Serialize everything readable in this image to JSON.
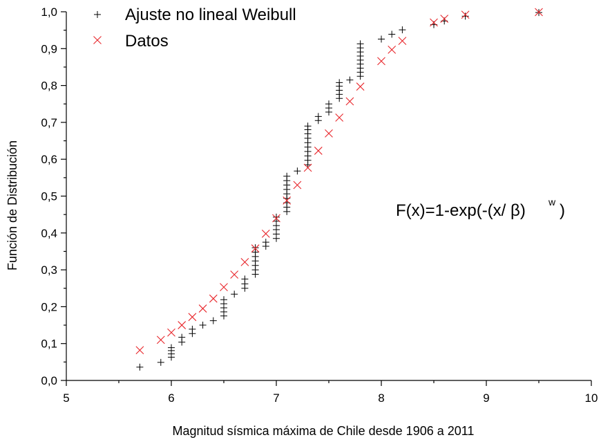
{
  "chart_data": {
    "type": "scatter",
    "title": "",
    "xlabel": "Magnitud sísmica máxima de Chile desde 1906 a 2011",
    "ylabel": "Función de Distribución",
    "xlim": [
      5,
      10
    ],
    "ylim": [
      0,
      1
    ],
    "x_ticks": [
      "5",
      "6",
      "7",
      "8",
      "9",
      "10"
    ],
    "y_ticks": [
      "0,0",
      "0,1",
      "0,2",
      "0,3",
      "0,4",
      "0,5",
      "0,6",
      "0,7",
      "0,8",
      "0,9",
      "1,0"
    ],
    "grid": false,
    "legend": "top-left",
    "annotation": {
      "text_main": "F(x)=1-exp(-(x/ ",
      "beta": "β",
      "close_paren": ")",
      "exponent": "w",
      "tail": " )"
    },
    "series": [
      {
        "name": "Ajuste no lineal Weibull",
        "marker": "plus",
        "color": "#000000",
        "points": [
          [
            5.7,
            0.036
          ],
          [
            5.9,
            0.049
          ],
          [
            6.0,
            0.063
          ],
          [
            6.0,
            0.072
          ],
          [
            6.0,
            0.081
          ],
          [
            6.0,
            0.089
          ],
          [
            6.1,
            0.104
          ],
          [
            6.1,
            0.117
          ],
          [
            6.2,
            0.127
          ],
          [
            6.2,
            0.139
          ],
          [
            6.3,
            0.15
          ],
          [
            6.4,
            0.162
          ],
          [
            6.5,
            0.175
          ],
          [
            6.5,
            0.186
          ],
          [
            6.5,
            0.197
          ],
          [
            6.5,
            0.208
          ],
          [
            6.5,
            0.219
          ],
          [
            6.6,
            0.234
          ],
          [
            6.7,
            0.25
          ],
          [
            6.7,
            0.262
          ],
          [
            6.7,
            0.275
          ],
          [
            6.8,
            0.288
          ],
          [
            6.8,
            0.3
          ],
          [
            6.8,
            0.312
          ],
          [
            6.8,
            0.324
          ],
          [
            6.8,
            0.336
          ],
          [
            6.8,
            0.348
          ],
          [
            6.8,
            0.36
          ],
          [
            6.9,
            0.364
          ],
          [
            6.9,
            0.375
          ],
          [
            7.0,
            0.385
          ],
          [
            7.0,
            0.397
          ],
          [
            7.0,
            0.409
          ],
          [
            7.0,
            0.42
          ],
          [
            7.0,
            0.432
          ],
          [
            7.0,
            0.443
          ],
          [
            7.1,
            0.458
          ],
          [
            7.1,
            0.47
          ],
          [
            7.1,
            0.482
          ],
          [
            7.1,
            0.494
          ],
          [
            7.1,
            0.506
          ],
          [
            7.1,
            0.518
          ],
          [
            7.1,
            0.53
          ],
          [
            7.1,
            0.542
          ],
          [
            7.1,
            0.554
          ],
          [
            7.2,
            0.568
          ],
          [
            7.3,
            0.585
          ],
          [
            7.3,
            0.597
          ],
          [
            7.3,
            0.609
          ],
          [
            7.3,
            0.621
          ],
          [
            7.3,
            0.633
          ],
          [
            7.3,
            0.645
          ],
          [
            7.3,
            0.657
          ],
          [
            7.3,
            0.669
          ],
          [
            7.3,
            0.68
          ],
          [
            7.3,
            0.69
          ],
          [
            7.4,
            0.705
          ],
          [
            7.4,
            0.716
          ],
          [
            7.5,
            0.728
          ],
          [
            7.5,
            0.739
          ],
          [
            7.5,
            0.75
          ],
          [
            7.6,
            0.765
          ],
          [
            7.6,
            0.776
          ],
          [
            7.6,
            0.787
          ],
          [
            7.6,
            0.798
          ],
          [
            7.6,
            0.808
          ],
          [
            7.7,
            0.815
          ],
          [
            7.8,
            0.825
          ],
          [
            7.8,
            0.836
          ],
          [
            7.8,
            0.847
          ],
          [
            7.8,
            0.858
          ],
          [
            7.8,
            0.869
          ],
          [
            7.8,
            0.88
          ],
          [
            7.8,
            0.891
          ],
          [
            7.8,
            0.902
          ],
          [
            7.8,
            0.913
          ],
          [
            8.0,
            0.926
          ],
          [
            8.1,
            0.939
          ],
          [
            8.2,
            0.951
          ],
          [
            8.5,
            0.965
          ],
          [
            8.6,
            0.975
          ],
          [
            8.8,
            0.988
          ],
          [
            9.5,
            0.998
          ]
        ]
      },
      {
        "name": "Datos",
        "marker": "x",
        "color": "#e8262b",
        "points": [
          [
            5.7,
            0.082
          ],
          [
            5.9,
            0.11
          ],
          [
            6.0,
            0.13
          ],
          [
            6.1,
            0.15
          ],
          [
            6.2,
            0.172
          ],
          [
            6.3,
            0.195
          ],
          [
            6.4,
            0.222
          ],
          [
            6.5,
            0.253
          ],
          [
            6.6,
            0.287
          ],
          [
            6.7,
            0.321
          ],
          [
            6.8,
            0.358
          ],
          [
            6.9,
            0.398
          ],
          [
            7.0,
            0.44
          ],
          [
            7.1,
            0.488
          ],
          [
            7.2,
            0.53
          ],
          [
            7.3,
            0.577
          ],
          [
            7.4,
            0.623
          ],
          [
            7.5,
            0.67
          ],
          [
            7.6,
            0.713
          ],
          [
            7.7,
            0.757
          ],
          [
            7.8,
            0.797
          ],
          [
            8.0,
            0.866
          ],
          [
            8.1,
            0.897
          ],
          [
            8.2,
            0.921
          ],
          [
            8.5,
            0.971
          ],
          [
            8.6,
            0.981
          ],
          [
            8.8,
            0.992
          ],
          [
            9.5,
            0.999
          ]
        ]
      }
    ]
  }
}
